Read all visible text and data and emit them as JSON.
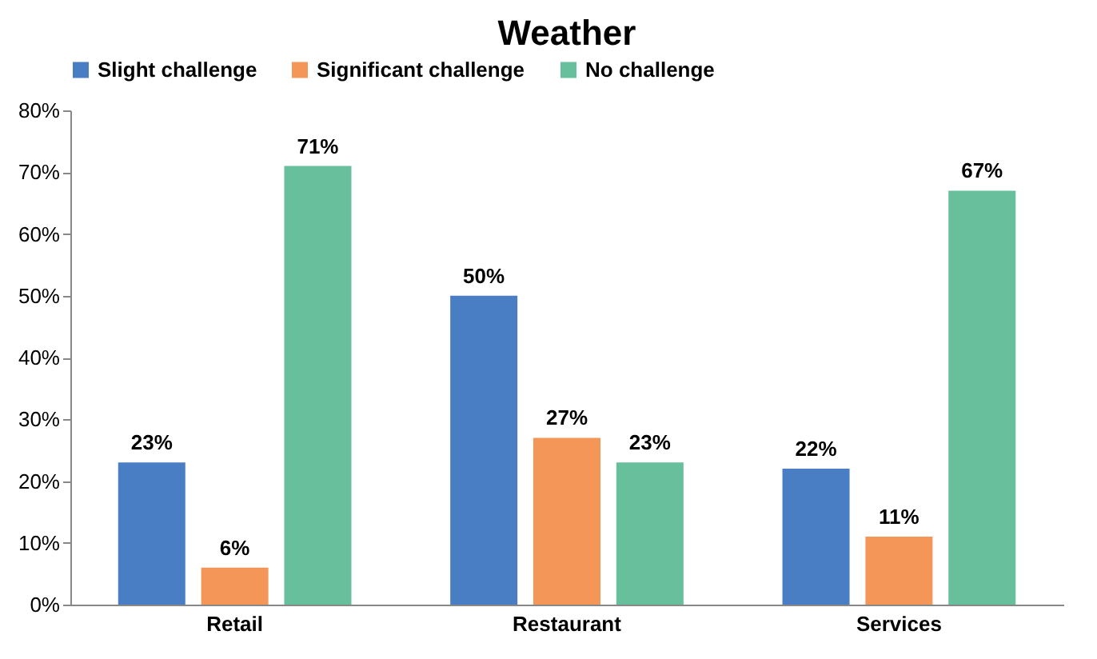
{
  "chart_data": {
    "type": "bar",
    "title": "Weather",
    "categories": [
      "Retail",
      "Restaurant",
      "Services"
    ],
    "series": [
      {
        "name": "Slight challenge",
        "color": "#4a7ec4",
        "values": [
          23,
          50,
          22
        ],
        "value_labels": [
          "23%",
          "50%",
          "22%"
        ]
      },
      {
        "name": "Significant challenge",
        "color": "#f49658",
        "values": [
          6,
          27,
          11
        ],
        "value_labels": [
          "6%",
          "27%",
          "11%"
        ]
      },
      {
        "name": "No challenge",
        "color": "#67bf9b",
        "values": [
          71,
          23,
          67
        ],
        "value_labels": [
          "71%",
          "23%",
          "67%"
        ]
      }
    ],
    "ylim": [
      0,
      80
    ],
    "yticks": [
      {
        "value": 0,
        "label": "0%"
      },
      {
        "value": 10,
        "label": "10%"
      },
      {
        "value": 20,
        "label": "20%"
      },
      {
        "value": 30,
        "label": "30%"
      },
      {
        "value": 40,
        "label": "40%"
      },
      {
        "value": 50,
        "label": "50%"
      },
      {
        "value": 60,
        "label": "60%"
      },
      {
        "value": 70,
        "label": "70%"
      },
      {
        "value": 80,
        "label": "80%"
      }
    ],
    "grid": false,
    "legend": "top"
  }
}
